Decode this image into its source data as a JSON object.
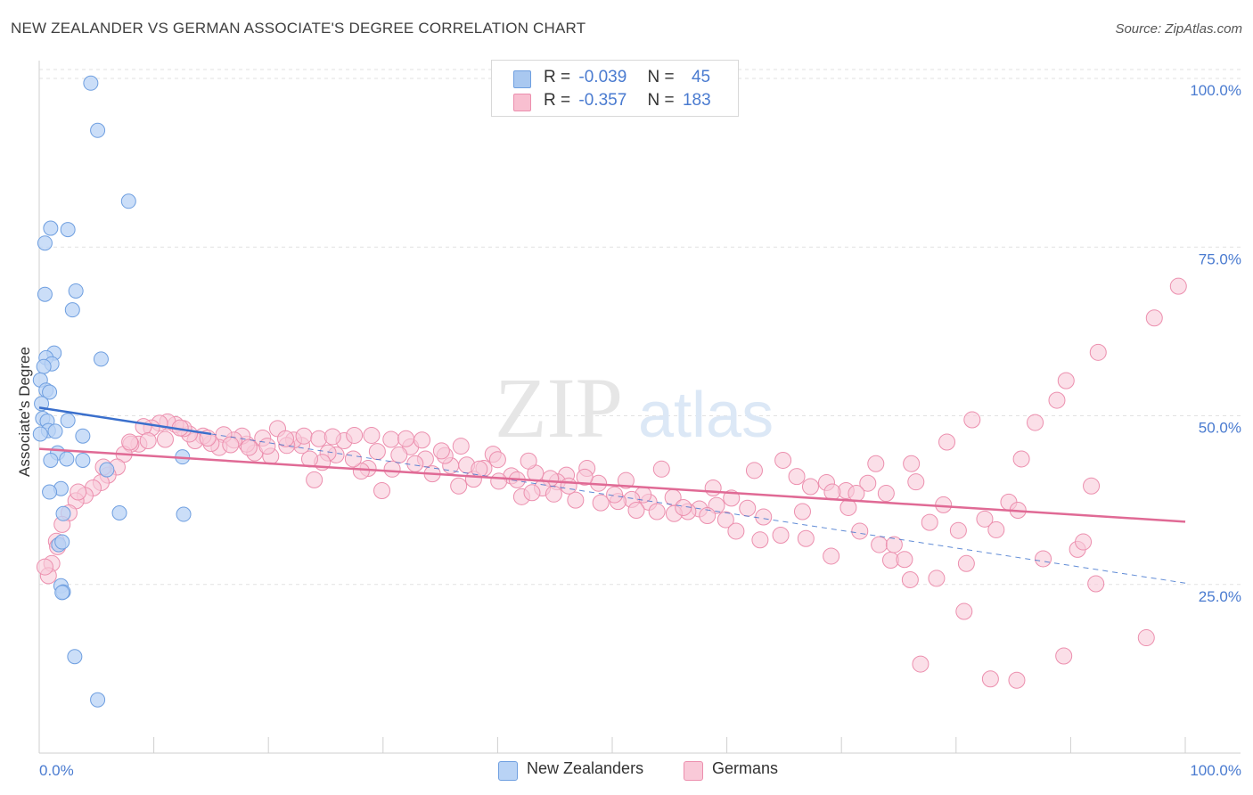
{
  "title": "NEW ZEALANDER VS GERMAN ASSOCIATE'S DEGREE CORRELATION CHART",
  "source": "Source: ZipAtlas.com",
  "watermark": {
    "zip": "ZIP",
    "atlas": "atlas"
  },
  "legend": {
    "rows": [
      {
        "r_label": "R =",
        "r_value": "-0.039",
        "n_label": "N =",
        "n_value": "45",
        "color": "#a9c8f0",
        "border": "#6f9fe0"
      },
      {
        "r_label": "R =",
        "r_value": "-0.357",
        "n_label": "N =",
        "n_value": "183",
        "color": "#f8bfd0",
        "border": "#ec8fae"
      }
    ]
  },
  "bottom_legend": [
    {
      "label": "New Zealanders",
      "color": "#b9d3f5",
      "border": "#6f9fe0"
    },
    {
      "label": "Germans",
      "color": "#f9c9d8",
      "border": "#ec8fae"
    }
  ],
  "chart_data": {
    "type": "scatter",
    "xlabel": "",
    "ylabel": "Associate's Degree",
    "xlim": [
      0,
      100
    ],
    "ylim": [
      0,
      100
    ],
    "x_tick_labels": [
      "0.0%",
      "100.0%"
    ],
    "y_tick_labels": [
      "100.0%",
      "75.0%",
      "50.0%",
      "25.0%"
    ],
    "y_tick_values": [
      100,
      75,
      50,
      25
    ],
    "grid": true,
    "colors": {
      "blue": "#6f9fe0",
      "blue_fill": "#b9d3f5",
      "pink": "#ec8fae",
      "pink_fill": "#f9c9d8",
      "blue_line": "#3a6fcc",
      "pink_line": "#e06a95"
    },
    "series": [
      {
        "name": "New Zealanders",
        "points": [
          [
            4.5,
            99.3
          ],
          [
            5.1,
            92.3
          ],
          [
            7.8,
            81.8
          ],
          [
            1.0,
            77.8
          ],
          [
            2.5,
            77.6
          ],
          [
            0.5,
            75.6
          ],
          [
            0.5,
            68.0
          ],
          [
            3.2,
            68.5
          ],
          [
            2.9,
            65.7
          ],
          [
            1.3,
            59.3
          ],
          [
            5.4,
            58.4
          ],
          [
            0.6,
            58.6
          ],
          [
            1.1,
            57.7
          ],
          [
            0.4,
            57.3
          ],
          [
            0.1,
            55.3
          ],
          [
            0.6,
            53.8
          ],
          [
            0.9,
            53.5
          ],
          [
            0.2,
            51.8
          ],
          [
            0.3,
            49.6
          ],
          [
            0.7,
            49.2
          ],
          [
            2.5,
            49.3
          ],
          [
            0.8,
            47.8
          ],
          [
            1.4,
            47.7
          ],
          [
            0.1,
            47.3
          ],
          [
            3.8,
            47.0
          ],
          [
            1.6,
            44.5
          ],
          [
            1.0,
            43.4
          ],
          [
            2.4,
            43.6
          ],
          [
            3.8,
            43.4
          ],
          [
            12.5,
            43.9
          ],
          [
            5.9,
            42.0
          ],
          [
            1.9,
            39.2
          ],
          [
            0.9,
            38.7
          ],
          [
            2.1,
            35.5
          ],
          [
            7.0,
            35.6
          ],
          [
            12.6,
            35.4
          ],
          [
            1.7,
            30.9
          ],
          [
            2.0,
            31.3
          ],
          [
            1.9,
            24.8
          ],
          [
            2.1,
            23.9
          ],
          [
            2.0,
            23.8
          ],
          [
            3.1,
            14.3
          ],
          [
            5.1,
            7.9
          ]
        ]
      },
      {
        "name": "Germans",
        "points": [
          [
            99.4,
            69.2
          ],
          [
            97.3,
            64.5
          ],
          [
            92.4,
            59.4
          ],
          [
            89.6,
            55.2
          ],
          [
            88.8,
            52.3
          ],
          [
            86.9,
            49.0
          ],
          [
            81.4,
            49.4
          ],
          [
            79.2,
            46.1
          ],
          [
            85.7,
            43.6
          ],
          [
            91.8,
            39.6
          ],
          [
            84.6,
            37.2
          ],
          [
            85.4,
            36.0
          ],
          [
            78.9,
            36.8
          ],
          [
            76.1,
            42.9
          ],
          [
            76.5,
            40.2
          ],
          [
            73.0,
            42.9
          ],
          [
            72.3,
            40.0
          ],
          [
            70.4,
            38.9
          ],
          [
            67.3,
            39.5
          ],
          [
            68.7,
            40.1
          ],
          [
            69.2,
            38.7
          ],
          [
            66.1,
            41.0
          ],
          [
            64.9,
            43.4
          ],
          [
            71.3,
            38.5
          ],
          [
            73.9,
            38.5
          ],
          [
            66.6,
            35.8
          ],
          [
            62.4,
            41.9
          ],
          [
            60.4,
            37.8
          ],
          [
            61.8,
            36.3
          ],
          [
            63.2,
            35.0
          ],
          [
            58.8,
            39.3
          ],
          [
            59.1,
            36.7
          ],
          [
            59.9,
            34.6
          ],
          [
            57.6,
            36.2
          ],
          [
            56.6,
            35.8
          ],
          [
            55.4,
            35.5
          ],
          [
            55.3,
            37.9
          ],
          [
            54.3,
            42.1
          ],
          [
            53.2,
            37.2
          ],
          [
            52.7,
            38.3
          ],
          [
            51.7,
            37.6
          ],
          [
            51.2,
            40.4
          ],
          [
            50.5,
            37.3
          ],
          [
            49.0,
            37.1
          ],
          [
            48.8,
            40.0
          ],
          [
            47.8,
            42.2
          ],
          [
            46.8,
            37.5
          ],
          [
            46.0,
            41.2
          ],
          [
            45.2,
            40.2
          ],
          [
            44.6,
            40.7
          ],
          [
            43.9,
            39.3
          ],
          [
            43.3,
            41.5
          ],
          [
            42.7,
            43.3
          ],
          [
            42.1,
            38.0
          ],
          [
            41.2,
            41.1
          ],
          [
            40.1,
            40.3
          ],
          [
            39.6,
            44.3
          ],
          [
            38.8,
            42.2
          ],
          [
            37.9,
            40.6
          ],
          [
            37.3,
            42.7
          ],
          [
            36.6,
            39.6
          ],
          [
            35.9,
            42.6
          ],
          [
            35.4,
            44.1
          ],
          [
            34.3,
            41.4
          ],
          [
            33.7,
            43.6
          ],
          [
            32.8,
            42.9
          ],
          [
            32.4,
            45.4
          ],
          [
            31.4,
            44.2
          ],
          [
            30.8,
            42.1
          ],
          [
            29.9,
            38.9
          ],
          [
            29.5,
            44.7
          ],
          [
            28.7,
            42.2
          ],
          [
            28.1,
            41.8
          ],
          [
            27.4,
            43.6
          ],
          [
            26.6,
            46.3
          ],
          [
            25.9,
            44.2
          ],
          [
            25.2,
            44.5
          ],
          [
            24.7,
            43.1
          ],
          [
            24.0,
            40.5
          ],
          [
            23.6,
            43.6
          ],
          [
            22.9,
            45.6
          ],
          [
            22.2,
            46.4
          ],
          [
            21.6,
            45.6
          ],
          [
            20.8,
            48.1
          ],
          [
            20.2,
            44.0
          ],
          [
            19.5,
            46.7
          ],
          [
            18.8,
            44.5
          ],
          [
            18.1,
            45.8
          ],
          [
            17.7,
            47.0
          ],
          [
            17.0,
            46.4
          ],
          [
            16.1,
            47.2
          ],
          [
            15.7,
            45.3
          ],
          [
            15.0,
            45.9
          ],
          [
            14.3,
            47.0
          ],
          [
            13.6,
            46.3
          ],
          [
            13.1,
            47.3
          ],
          [
            12.6,
            48.1
          ],
          [
            11.9,
            48.7
          ],
          [
            11.2,
            49.1
          ],
          [
            10.5,
            48.9
          ],
          [
            9.8,
            48.2
          ],
          [
            9.1,
            48.4
          ],
          [
            8.7,
            45.8
          ],
          [
            8.0,
            45.8
          ],
          [
            7.4,
            44.3
          ],
          [
            6.8,
            42.4
          ],
          [
            6.0,
            41.2
          ],
          [
            5.4,
            40.1
          ],
          [
            4.7,
            39.3
          ],
          [
            4.0,
            38.2
          ],
          [
            3.2,
            37.4
          ],
          [
            2.6,
            35.6
          ],
          [
            2.0,
            33.9
          ],
          [
            1.5,
            31.4
          ],
          [
            1.1,
            28.1
          ],
          [
            0.8,
            26.3
          ],
          [
            0.5,
            27.6
          ],
          [
            1.6,
            30.6
          ],
          [
            3.4,
            38.7
          ],
          [
            5.6,
            42.4
          ],
          [
            7.9,
            46.1
          ],
          [
            9.5,
            46.3
          ],
          [
            11.0,
            46.5
          ],
          [
            12.3,
            48.2
          ],
          [
            14.7,
            46.7
          ],
          [
            16.7,
            45.7
          ],
          [
            18.3,
            45.3
          ],
          [
            19.9,
            45.5
          ],
          [
            21.5,
            46.6
          ],
          [
            23.1,
            47.0
          ],
          [
            24.4,
            46.6
          ],
          [
            25.6,
            46.9
          ],
          [
            27.5,
            47.1
          ],
          [
            29.0,
            47.1
          ],
          [
            30.7,
            46.5
          ],
          [
            32.0,
            46.6
          ],
          [
            33.4,
            46.4
          ],
          [
            35.1,
            44.8
          ],
          [
            36.8,
            45.5
          ],
          [
            38.4,
            42.1
          ],
          [
            40.0,
            43.5
          ],
          [
            41.7,
            40.5
          ],
          [
            43.0,
            38.6
          ],
          [
            44.9,
            38.4
          ],
          [
            46.2,
            39.6
          ],
          [
            47.6,
            40.9
          ],
          [
            50.2,
            38.3
          ],
          [
            52.1,
            36.0
          ],
          [
            53.9,
            35.8
          ],
          [
            56.2,
            36.4
          ],
          [
            58.3,
            35.2
          ],
          [
            60.8,
            32.9
          ],
          [
            62.9,
            31.6
          ],
          [
            64.7,
            32.3
          ],
          [
            66.9,
            31.8
          ],
          [
            69.1,
            29.2
          ],
          [
            70.6,
            36.4
          ],
          [
            71.6,
            32.9
          ],
          [
            73.3,
            30.9
          ],
          [
            74.3,
            28.6
          ],
          [
            75.5,
            28.7
          ],
          [
            76.0,
            25.7
          ],
          [
            77.7,
            34.2
          ],
          [
            78.3,
            25.9
          ],
          [
            80.2,
            33.0
          ],
          [
            80.9,
            28.1
          ],
          [
            82.5,
            34.7
          ],
          [
            83.5,
            33.1
          ],
          [
            87.6,
            28.8
          ],
          [
            90.6,
            30.2
          ],
          [
            91.1,
            31.3
          ],
          [
            92.2,
            25.1
          ],
          [
            96.6,
            17.1
          ],
          [
            89.4,
            14.4
          ],
          [
            80.7,
            21.0
          ],
          [
            76.9,
            13.2
          ],
          [
            83.0,
            11.0
          ],
          [
            85.3,
            10.8
          ],
          [
            74.6,
            30.9
          ]
        ]
      }
    ],
    "trendlines": [
      {
        "series": "New Zealanders",
        "solid_from": [
          0,
          51.2
        ],
        "solid_to": [
          15,
          47.3
        ],
        "dashed_to": [
          100,
          25.2
        ]
      },
      {
        "series": "Germans",
        "from": [
          0,
          45.1
        ],
        "to": [
          100,
          34.3
        ]
      }
    ]
  }
}
